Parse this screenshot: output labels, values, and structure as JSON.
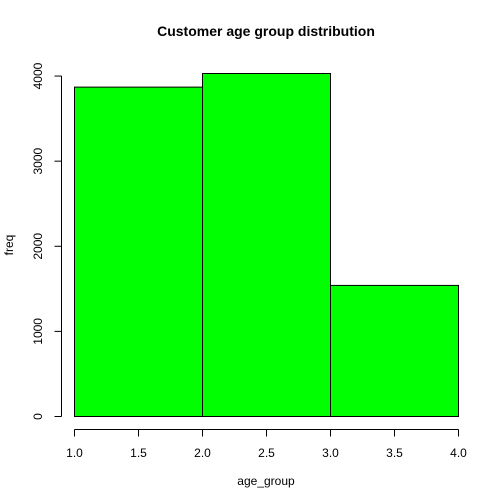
{
  "chart_data": {
    "type": "bar",
    "title": "Customer age group distribution",
    "xlabel": "age_group",
    "ylabel": "freq",
    "bins": [
      {
        "x0": 1.0,
        "x1": 2.0,
        "value": 3870
      },
      {
        "x0": 2.0,
        "x1": 3.0,
        "value": 4030
      },
      {
        "x0": 3.0,
        "x1": 4.0,
        "value": 1540
      }
    ],
    "xlim": [
      1.0,
      4.0
    ],
    "ylim": [
      0,
      4030
    ],
    "x_ticks": [
      {
        "value": 1.0,
        "label": "1.0"
      },
      {
        "value": 1.5,
        "label": "1.5"
      },
      {
        "value": 2.0,
        "label": "2.0"
      },
      {
        "value": 2.5,
        "label": "2.5"
      },
      {
        "value": 3.0,
        "label": "3.0"
      },
      {
        "value": 3.5,
        "label": "3.5"
      },
      {
        "value": 4.0,
        "label": "4.0"
      }
    ],
    "y_ticks": [
      {
        "value": 0,
        "label": "0"
      },
      {
        "value": 1000,
        "label": "1000"
      },
      {
        "value": 2000,
        "label": "2000"
      },
      {
        "value": 3000,
        "label": "3000"
      },
      {
        "value": 4000,
        "label": "4000"
      }
    ],
    "bar_color": "#00ff00",
    "bar_border_color": "#000000",
    "grid": false,
    "legend": "none"
  }
}
